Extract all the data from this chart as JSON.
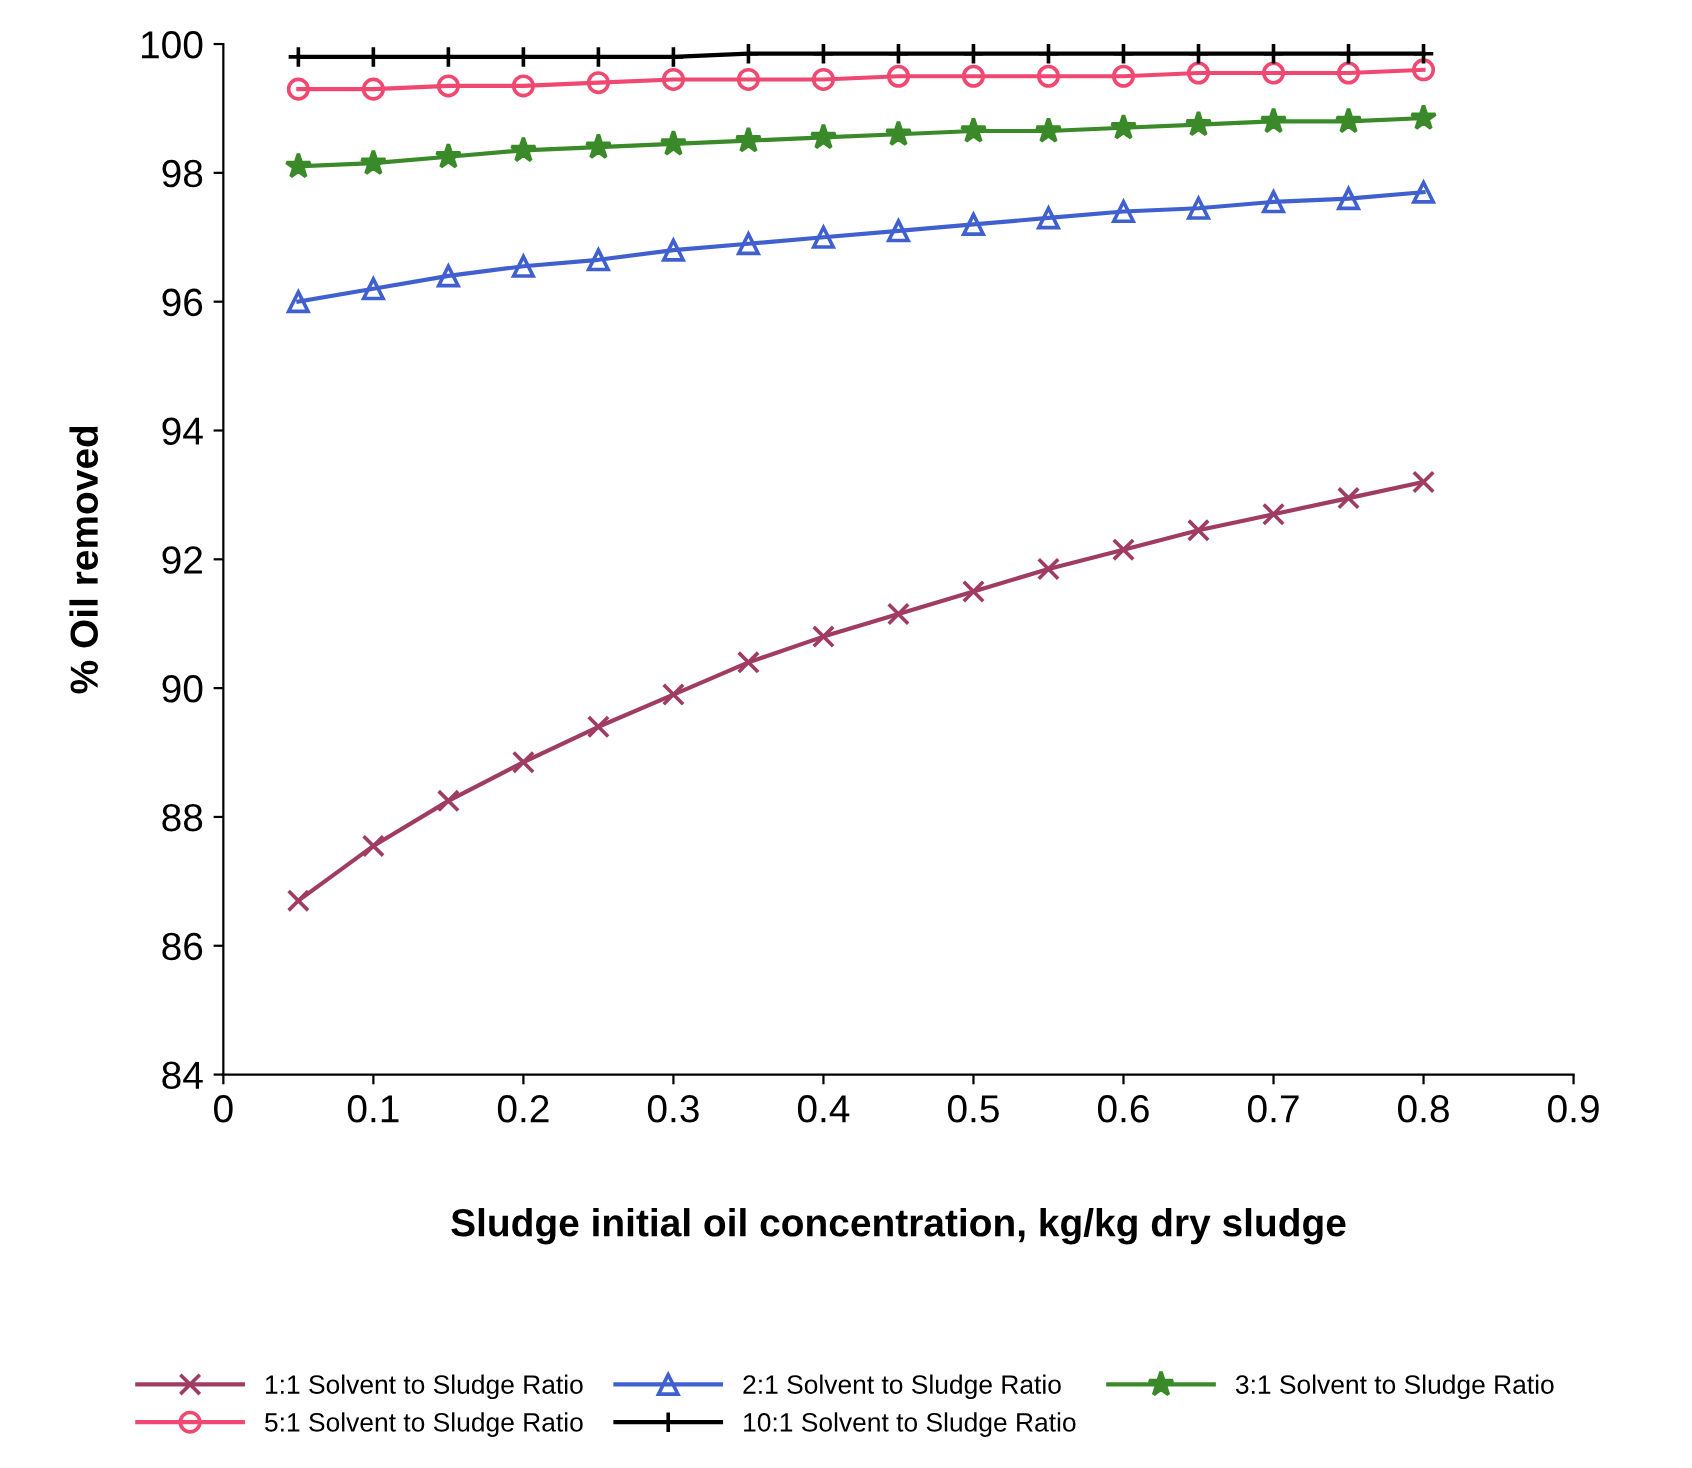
{
  "chart_data": {
    "type": "line",
    "xlabel": "Sludge initial oil concentration, kg/kg dry sludge",
    "ylabel": "% Oil removed",
    "x": [
      0.05,
      0.1,
      0.15,
      0.2,
      0.25,
      0.3,
      0.35,
      0.4,
      0.45,
      0.5,
      0.55,
      0.6,
      0.65,
      0.7,
      0.75,
      0.8
    ],
    "series": [
      {
        "name": "1:1 Solvent to Sludge Ratio",
        "color": "#a03c62",
        "marker": "cross",
        "values": [
          86.7,
          87.55,
          88.25,
          88.85,
          89.4,
          89.9,
          90.4,
          90.8,
          91.15,
          91.5,
          91.85,
          92.15,
          92.45,
          92.7,
          92.95,
          93.2
        ]
      },
      {
        "name": "2:1 Solvent to Sludge Ratio",
        "color": "#4060d0",
        "marker": "triangle",
        "values": [
          96.0,
          96.2,
          96.4,
          96.55,
          96.65,
          96.8,
          96.9,
          97.0,
          97.1,
          97.2,
          97.3,
          97.4,
          97.45,
          97.55,
          97.6,
          97.7
        ]
      },
      {
        "name": "3:1 Solvent to Sludge Ratio",
        "color": "#3a8a2a",
        "marker": "star",
        "values": [
          98.1,
          98.15,
          98.25,
          98.35,
          98.4,
          98.45,
          98.5,
          98.55,
          98.6,
          98.65,
          98.65,
          98.7,
          98.75,
          98.8,
          98.8,
          98.85
        ]
      },
      {
        "name": "5:1 Solvent to Sludge Ratio",
        "color": "#f04870",
        "marker": "circle",
        "values": [
          99.3,
          99.3,
          99.35,
          99.35,
          99.4,
          99.45,
          99.45,
          99.45,
          99.5,
          99.5,
          99.5,
          99.5,
          99.55,
          99.55,
          99.55,
          99.6
        ]
      },
      {
        "name": "10:1 Solvent to Sludge Ratio",
        "color": "#000000",
        "marker": "plus",
        "values": [
          99.8,
          99.8,
          99.8,
          99.8,
          99.8,
          99.8,
          99.85,
          99.85,
          99.85,
          99.85,
          99.85,
          99.85,
          99.85,
          99.85,
          99.85,
          99.85
        ]
      }
    ],
    "xlim": [
      0,
      0.9
    ],
    "xticks": [
      0,
      0.1,
      0.2,
      0.3,
      0.4,
      0.5,
      0.6,
      0.7,
      0.8,
      0.9
    ],
    "ylim": [
      84,
      100
    ],
    "yticks": [
      84,
      86,
      88,
      90,
      92,
      94,
      96,
      98,
      100
    ],
    "grid": false,
    "legend": "bottom",
    "line_style": "solid"
  }
}
